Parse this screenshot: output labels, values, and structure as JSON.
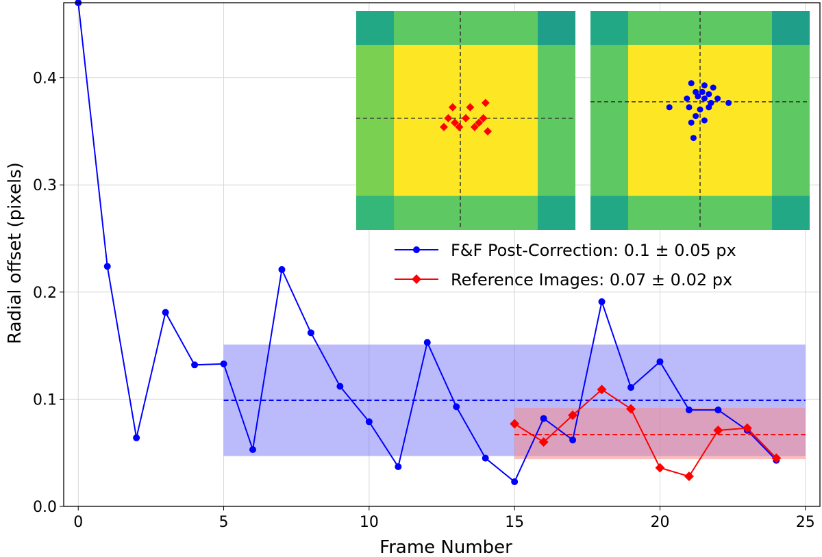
{
  "chart_data": {
    "type": "line",
    "title": "",
    "xlabel": "Frame Number",
    "ylabel": "Radial offset (pixels)",
    "xlim": [
      -0.5,
      25.5
    ],
    "ylim": [
      0,
      0.47
    ],
    "xticks": [
      0,
      5,
      10,
      15,
      20,
      25
    ],
    "xtick_labels": [
      "0",
      "5",
      "10",
      "15",
      "20",
      "25"
    ],
    "yticks": [
      0.0,
      0.1,
      0.2,
      0.3,
      0.4
    ],
    "ytick_labels": [
      "0.0",
      "0.1",
      "0.2",
      "0.3",
      "0.4"
    ],
    "grid": true,
    "legend_position": "right, below insets",
    "series": [
      {
        "name": "F&F Post-Correction: 0.1 ± 0.05 px",
        "color": "#0000ff",
        "marker": "circle",
        "x": [
          0,
          1,
          2,
          3,
          4,
          5,
          6,
          7,
          8,
          9,
          10,
          11,
          12,
          13,
          14,
          15,
          16,
          17,
          18,
          19,
          20,
          21,
          22,
          23,
          24
        ],
        "values": [
          0.47,
          0.224,
          0.064,
          0.181,
          0.132,
          0.133,
          0.053,
          0.221,
          0.162,
          0.112,
          0.079,
          0.037,
          0.153,
          0.093,
          0.045,
          0.023,
          0.082,
          0.062,
          0.191,
          0.111,
          0.135,
          0.09,
          0.09,
          0.071,
          0.043
        ],
        "mean": 0.099,
        "band": [
          0.047,
          0.151
        ],
        "band_x": [
          5,
          25
        ],
        "band_color": "#6f6ff7"
      },
      {
        "name": "Reference Images: 0.07 ± 0.02 px",
        "color": "#ff0000",
        "marker": "diamond",
        "x": [
          15,
          16,
          17,
          18,
          19,
          20,
          21,
          22,
          23,
          24
        ],
        "values": [
          0.077,
          0.06,
          0.085,
          0.109,
          0.091,
          0.036,
          0.028,
          0.071,
          0.073,
          0.045
        ],
        "mean": 0.067,
        "band": [
          0.044,
          0.092
        ],
        "band_x": [
          15,
          25
        ],
        "band_color": "#f48a8a"
      }
    ],
    "insets": [
      {
        "name": "reference-inset",
        "marker": "diamond",
        "color": "#ff0000",
        "crosshair": [
          0.475,
          0.49
        ],
        "points": [
          [
            0.44,
            0.44
          ],
          [
            0.52,
            0.44
          ],
          [
            0.59,
            0.42
          ],
          [
            0.42,
            0.49
          ],
          [
            0.45,
            0.51
          ],
          [
            0.5,
            0.49
          ],
          [
            0.56,
            0.51
          ],
          [
            0.47,
            0.53
          ],
          [
            0.4,
            0.53
          ],
          [
            0.54,
            0.53
          ],
          [
            0.6,
            0.55
          ],
          [
            0.58,
            0.49
          ]
        ]
      },
      {
        "name": "fnf-inset",
        "marker": "circle",
        "color": "#0000ff",
        "crosshair": [
          0.5,
          0.415
        ],
        "points": [
          [
            0.46,
            0.33
          ],
          [
            0.52,
            0.34
          ],
          [
            0.56,
            0.35
          ],
          [
            0.48,
            0.37
          ],
          [
            0.51,
            0.37
          ],
          [
            0.54,
            0.38
          ],
          [
            0.44,
            0.4
          ],
          [
            0.49,
            0.39
          ],
          [
            0.52,
            0.4
          ],
          [
            0.55,
            0.42
          ],
          [
            0.58,
            0.4
          ],
          [
            0.63,
            0.42
          ],
          [
            0.36,
            0.44
          ],
          [
            0.45,
            0.44
          ],
          [
            0.5,
            0.45
          ],
          [
            0.54,
            0.44
          ],
          [
            0.48,
            0.48
          ],
          [
            0.52,
            0.5
          ],
          [
            0.46,
            0.51
          ],
          [
            0.47,
            0.58
          ]
        ]
      }
    ],
    "inset_colors": {
      "center": "#fde725",
      "edge_left": "#7ad151",
      "edge_other": "#5ec962",
      "corner_a": "#22a884",
      "corner_b": "#1f9e89",
      "corner_c": "#35b779"
    }
  }
}
